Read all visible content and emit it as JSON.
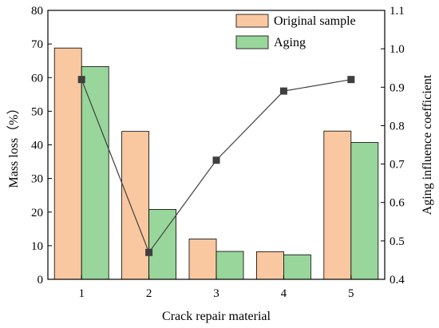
{
  "chart_data": {
    "type": "bar",
    "categories": [
      "1",
      "2",
      "3",
      "4",
      "5"
    ],
    "xlabel": "Crack repair material",
    "ylabel": "Mass loss（%）",
    "y2label": "Aging influence coefficient",
    "ylim": [
      0,
      80
    ],
    "y2lim": [
      0.4,
      1.1
    ],
    "yticks": [
      "0",
      "10",
      "20",
      "30",
      "40",
      "50",
      "60",
      "70",
      "80"
    ],
    "y2ticks": [
      "0.4",
      "0.5",
      "0.6",
      "0.7",
      "0.8",
      "0.9",
      "1.0",
      "1.1"
    ],
    "legend_position": "top-right",
    "series": [
      {
        "name": "Original sample",
        "type": "bar",
        "axis": "left",
        "color": "#f9c8a0",
        "values": [
          68.8,
          44.0,
          12.0,
          8.2,
          44.1
        ]
      },
      {
        "name": "Aging",
        "type": "bar",
        "axis": "left",
        "color": "#99d69b",
        "values": [
          63.3,
          20.8,
          8.3,
          7.3,
          40.7
        ]
      },
      {
        "type": "line",
        "axis": "right",
        "color": "#3f3f3f",
        "marker": "square",
        "values": [
          0.92,
          0.47,
          0.71,
          0.89,
          0.92
        ]
      }
    ]
  }
}
